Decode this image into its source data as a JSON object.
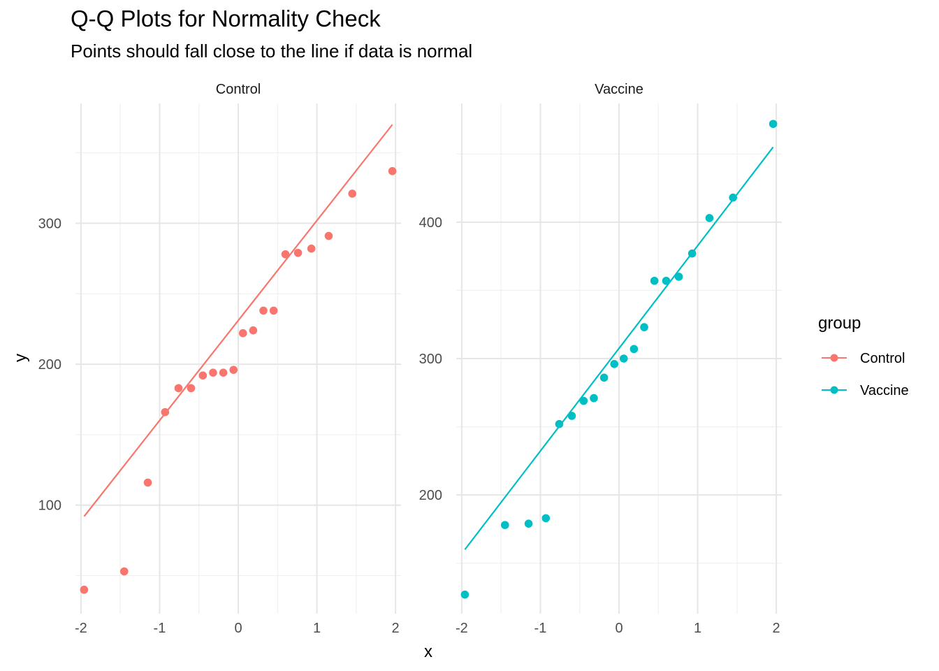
{
  "chart_data": {
    "type": "scatter",
    "title": "Q-Q Plots for Normality Check",
    "subtitle": "Points should fall close to the line if data is normal",
    "xlabel": "x",
    "ylabel": "y",
    "grid": true,
    "legend": {
      "title": "group",
      "position": "right",
      "entries": [
        "Control",
        "Vaccine"
      ]
    },
    "colors": {
      "Control": "#F8766D",
      "Vaccine": "#00BFC4"
    },
    "panels": [
      {
        "name": "Control",
        "xlim": [
          -2.07,
          2.07
        ],
        "ylim": [
          23,
          385
        ],
        "xticks": [
          -2,
          -1,
          0,
          1,
          2
        ],
        "yticks": [
          100,
          200,
          300
        ],
        "line": {
          "x": [
            -1.96,
            1.96
          ],
          "y": [
            92,
            370
          ]
        },
        "points": {
          "x": [
            -1.96,
            -1.45,
            -1.15,
            -0.93,
            -0.76,
            -0.6,
            -0.45,
            -0.32,
            -0.19,
            -0.06,
            0.06,
            0.19,
            0.32,
            0.45,
            0.6,
            0.76,
            0.93,
            1.15,
            1.45,
            1.96
          ],
          "y": [
            40,
            53,
            116,
            166,
            183,
            183,
            192,
            194,
            194,
            196,
            222,
            224,
            238,
            238,
            278,
            279,
            282,
            291,
            321,
            337
          ]
        }
      },
      {
        "name": "Vaccine",
        "xlim": [
          -2.07,
          2.07
        ],
        "ylim": [
          113,
          487
        ],
        "xticks": [
          -2,
          -1,
          0,
          1,
          2
        ],
        "yticks": [
          200,
          300,
          400
        ],
        "line": {
          "x": [
            -1.96,
            1.96
          ],
          "y": [
            160,
            455
          ]
        },
        "points": {
          "x": [
            -1.96,
            -1.45,
            -1.15,
            -0.93,
            -0.76,
            -0.6,
            -0.45,
            -0.32,
            -0.19,
            -0.06,
            0.06,
            0.19,
            0.32,
            0.45,
            0.6,
            0.76,
            0.93,
            1.15,
            1.45,
            1.96
          ],
          "y": [
            127,
            178,
            179,
            183,
            252,
            258,
            269,
            271,
            286,
            296,
            300,
            307,
            323,
            357,
            357,
            360,
            377,
            403,
            418,
            472
          ]
        }
      }
    ]
  }
}
